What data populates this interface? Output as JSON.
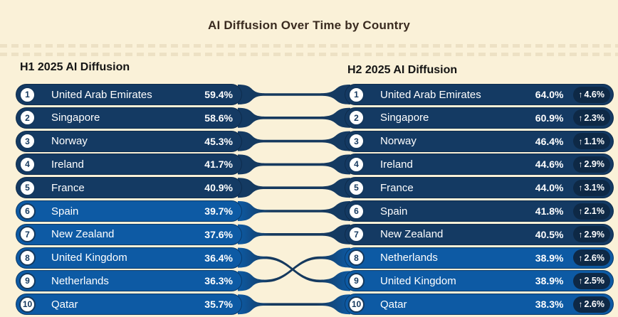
{
  "icons": {
    "up_arrow": "↑"
  },
  "colors": {
    "background": "#faf1d8",
    "pill_dark": "#143a63",
    "pill_light": "#0d5aa4",
    "pill_border": "#0a2342",
    "change_badge_bg": "#0e2946",
    "rank_circle_bg": "#ffffff",
    "rank_circle_border": "#15395e",
    "link_line": "#15395e",
    "title_text": "#3a2b20",
    "header_text": "#141414",
    "row_text": "#ffffff"
  },
  "chart_data": {
    "type": "table",
    "subtype": "slope-ranking",
    "title": "AI Diffusion Over Time by Country",
    "panels": [
      {
        "header": "H1 2025 AI Diffusion",
        "rows": [
          {
            "rank": 1,
            "country": "United Arab Emirates",
            "value": "59.4%",
            "tone": "dark"
          },
          {
            "rank": 2,
            "country": "Singapore",
            "value": "58.6%",
            "tone": "dark"
          },
          {
            "rank": 3,
            "country": "Norway",
            "value": "45.3%",
            "tone": "dark"
          },
          {
            "rank": 4,
            "country": "Ireland",
            "value": "41.7%",
            "tone": "dark"
          },
          {
            "rank": 5,
            "country": "France",
            "value": "40.9%",
            "tone": "dark"
          },
          {
            "rank": 6,
            "country": "Spain",
            "value": "39.7%",
            "tone": "light"
          },
          {
            "rank": 7,
            "country": "New Zealand",
            "value": "37.6%",
            "tone": "light"
          },
          {
            "rank": 8,
            "country": "United Kingdom",
            "value": "36.4%",
            "tone": "light"
          },
          {
            "rank": 9,
            "country": "Netherlands",
            "value": "36.3%",
            "tone": "light"
          },
          {
            "rank": 10,
            "country": "Qatar",
            "value": "35.7%",
            "tone": "light"
          }
        ]
      },
      {
        "header": "H2 2025 AI Diffusion",
        "rows": [
          {
            "rank": 1,
            "country": "United Arab Emirates",
            "value": "64.0%",
            "change": "4.6%",
            "tone": "dark"
          },
          {
            "rank": 2,
            "country": "Singapore",
            "value": "60.9%",
            "change": "2.3%",
            "tone": "dark"
          },
          {
            "rank": 3,
            "country": "Norway",
            "value": "46.4%",
            "change": "1.1%",
            "tone": "dark"
          },
          {
            "rank": 4,
            "country": "Ireland",
            "value": "44.6%",
            "change": "2.9%",
            "tone": "dark"
          },
          {
            "rank": 5,
            "country": "France",
            "value": "44.0%",
            "change": "3.1%",
            "tone": "dark"
          },
          {
            "rank": 6,
            "country": "Spain",
            "value": "41.8%",
            "change": "2.1%",
            "tone": "dark"
          },
          {
            "rank": 7,
            "country": "New Zealand",
            "value": "40.5%",
            "change": "2.9%",
            "tone": "dark"
          },
          {
            "rank": 8,
            "country": "Netherlands",
            "value": "38.9%",
            "change": "2.6%",
            "tone": "light"
          },
          {
            "rank": 9,
            "country": "United Kingdom",
            "value": "38.9%",
            "change": "2.5%",
            "tone": "light"
          },
          {
            "rank": 10,
            "country": "Qatar",
            "value": "38.3%",
            "change": "2.6%",
            "tone": "light"
          }
        ]
      }
    ],
    "links": [
      [
        1,
        1
      ],
      [
        2,
        2
      ],
      [
        3,
        3
      ],
      [
        4,
        4
      ],
      [
        5,
        5
      ],
      [
        6,
        6
      ],
      [
        7,
        7
      ],
      [
        8,
        9
      ],
      [
        9,
        8
      ],
      [
        10,
        10
      ]
    ]
  }
}
